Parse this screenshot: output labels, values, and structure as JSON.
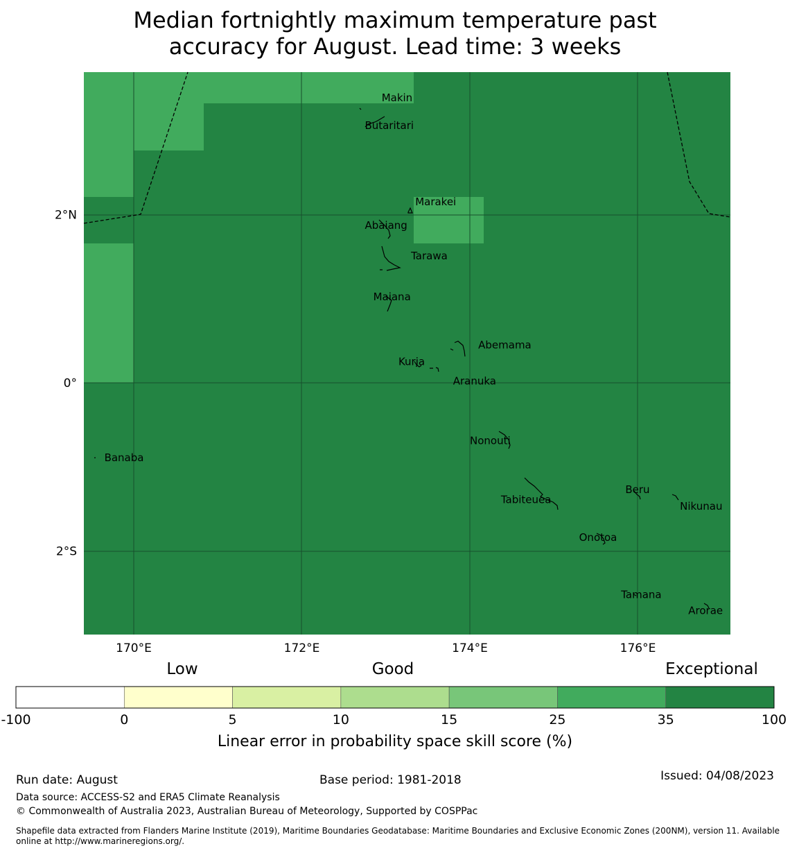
{
  "title_line1": "Median fortnightly maximum temperature past",
  "title_line2": "accuracy for August. Lead time: 3 weeks",
  "colors": {
    "exceptional": "#238443",
    "light": "#41ab5d",
    "grid": "#174f2c",
    "coast": "#000000"
  },
  "axes": {
    "x_ticks": [
      {
        "value": 170,
        "label": "170°E"
      },
      {
        "value": 172,
        "label": "172°E"
      },
      {
        "value": 174,
        "label": "174°E"
      },
      {
        "value": 176,
        "label": "176°E"
      }
    ],
    "y_ticks": [
      {
        "value": 2,
        "label": "2°N"
      },
      {
        "value": 0,
        "label": "0°"
      },
      {
        "value": -2,
        "label": "2°S"
      }
    ]
  },
  "places": [
    {
      "name": "Makin",
      "lon": 172.95,
      "lat": 3.35
    },
    {
      "name": "Butaritari",
      "lon": 172.75,
      "lat": 3.02
    },
    {
      "name": "Marakei",
      "lon": 173.35,
      "lat": 2.11
    },
    {
      "name": "Abaiang",
      "lon": 172.75,
      "lat": 1.83
    },
    {
      "name": "Tarawa",
      "lon": 173.3,
      "lat": 1.47
    },
    {
      "name": "Maiana",
      "lon": 172.85,
      "lat": 0.98
    },
    {
      "name": "Abemama",
      "lon": 174.1,
      "lat": 0.41
    },
    {
      "name": "Kuria",
      "lon": 173.15,
      "lat": 0.21
    },
    {
      "name": "Aranuka",
      "lon": 173.8,
      "lat": -0.02
    },
    {
      "name": "Banaba",
      "lon": 169.65,
      "lat": -0.93
    },
    {
      "name": "Nonouti",
      "lon": 174.0,
      "lat": -0.73
    },
    {
      "name": "Beru",
      "lon": 175.85,
      "lat": -1.31
    },
    {
      "name": "Nikunau",
      "lon": 176.5,
      "lat": -1.51
    },
    {
      "name": "Tabiteuea",
      "lon": 174.37,
      "lat": -1.43
    },
    {
      "name": "Onotoa",
      "lon": 175.3,
      "lat": -1.88
    },
    {
      "name": "Tamana",
      "lon": 175.8,
      "lat": -2.56
    },
    {
      "name": "Arorae",
      "lon": 176.6,
      "lat": -2.75
    }
  ],
  "colorbar": {
    "categories": [
      "Low",
      "Good",
      "Exceptional"
    ],
    "ticks": [
      "-100",
      "0",
      "5",
      "10",
      "15",
      "25",
      "35",
      "100"
    ],
    "colors": [
      "#ffffff",
      "#ffffcc",
      "#d9f0a3",
      "#addd8e",
      "#78c679",
      "#41ab5d",
      "#238443"
    ],
    "label": "Linear error in probability space skill score (%)"
  },
  "footer": {
    "run_date": "Run date: August",
    "base_period": "Base period: 1981-2018",
    "issued": "Issued: 04/08/2023",
    "data_source": "Data source: ACCESS-S2 and ERA5 Climate Reanalysis",
    "copyright": "© Commonwealth of Australia 2023, Australian Bureau of Meteorology, Supported by COSPPac",
    "shapefile": "Shapefile data extracted from Flanders Marine Institute (2019), Maritime Boundaries Geodatabase: Maritime Boundaries and Exclusive Economic Zones (200NM), version 11. Available online at http://www.marineregions.org/."
  }
}
